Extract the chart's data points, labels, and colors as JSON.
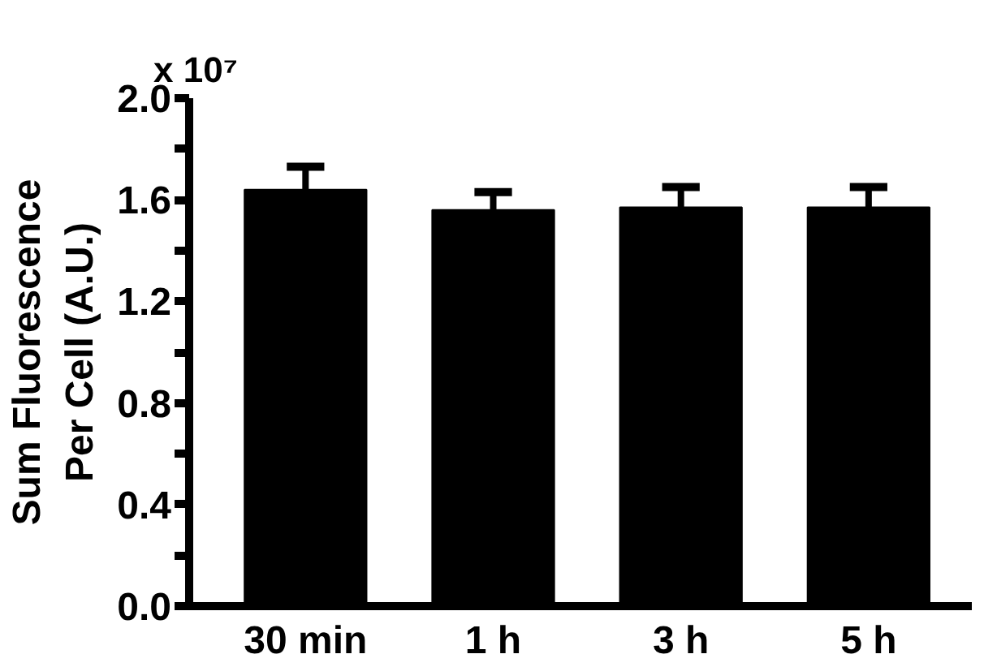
{
  "chart_data": {
    "type": "bar",
    "ylabel": "Sum Fluorescence\nPer Cell (A.U.)",
    "annotations": [
      "x 10⁷"
    ],
    "categories": [
      "30 min",
      "1 h",
      "3 h",
      "5 h"
    ],
    "values": [
      1.64,
      1.56,
      1.57,
      1.57
    ],
    "errors": [
      [
        1.64,
        1.73
      ],
      [
        1.56,
        1.63
      ],
      [
        1.57,
        1.65
      ],
      [
        1.57,
        1.65
      ]
    ],
    "color": "#000000",
    "ylim": [
      0,
      2.0
    ],
    "yticks": [
      "0.0",
      {
        "value": 0.2,
        "label": null
      },
      0.4,
      {
        "value": 0.6,
        "label": null
      },
      0.8,
      {
        "value": 1.0,
        "label": null
      },
      1.2,
      {
        "value": 1.4,
        "label": null
      },
      1.6,
      {
        "value": 1.8,
        "label": null
      },
      "2.0"
    ],
    "grid": false
  }
}
